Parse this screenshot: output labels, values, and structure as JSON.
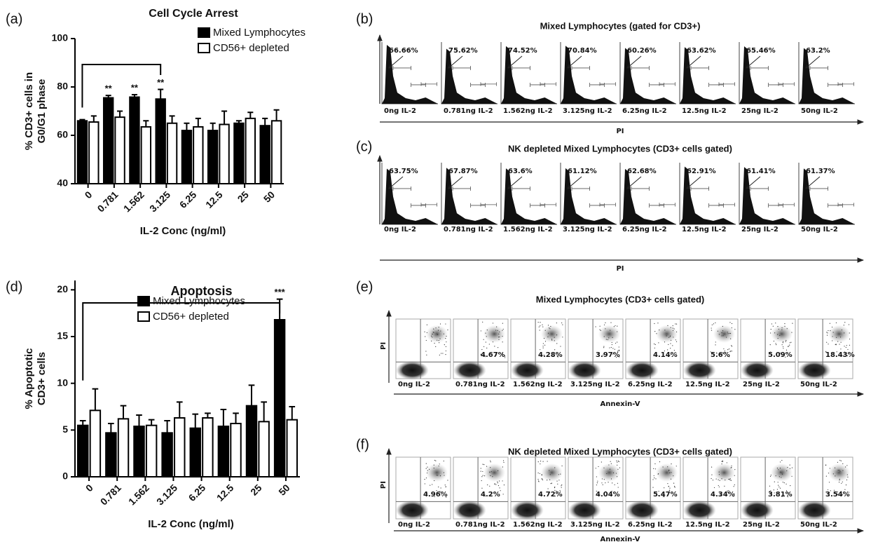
{
  "chart_data": [
    {
      "type": "bar",
      "panel_label": "(a)",
      "title": "Cell  Cycle Arrest",
      "y_label": [
        "% CD3+ cells in",
        "G0/G1 phase"
      ],
      "x_label": "IL-2 Conc  (ng/ml)",
      "categories": [
        "0",
        "0.781",
        "1.562",
        "3.125",
        "6.25",
        "12.5",
        "25",
        "50"
      ],
      "series": [
        {
          "name": "Mixed Lymphocytes",
          "color": "#000000",
          "values": [
            66,
            75.5,
            75.8,
            75,
            62,
            62,
            65,
            64
          ],
          "errors": [
            0.5,
            1,
            1,
            4,
            3,
            3,
            1,
            3
          ]
        },
        {
          "name": "CD56+ depleted",
          "color": "#ffffff",
          "values": [
            65.5,
            67.5,
            63.5,
            65,
            63.5,
            64.5,
            67,
            66
          ],
          "errors": [
            2.5,
            2.5,
            2.5,
            3,
            3.5,
            5.5,
            2.5,
            4.5
          ]
        }
      ],
      "annotations": [
        null,
        "**",
        "**",
        "**",
        null,
        null,
        null,
        null
      ],
      "ylim": [
        40,
        100
      ],
      "yticks": [
        40,
        60,
        80,
        100
      ],
      "legend": "upper right"
    },
    {
      "type": "bar",
      "panel_label": "(d)",
      "title": "Apoptosis",
      "y_label": [
        "% Apoptotic",
        "CD3+ cells"
      ],
      "x_label": "IL-2 Conc  (ng/ml)",
      "categories": [
        "0",
        "0.781",
        "1.562",
        "3.125",
        "6.25",
        "12.5",
        "25",
        "50"
      ],
      "series": [
        {
          "name": "Mixed Lymphocytes",
          "color": "#000000",
          "values": [
            5.5,
            4.7,
            5.4,
            4.7,
            5.2,
            5.4,
            7.6,
            16.8
          ],
          "errors": [
            0.5,
            1,
            1.2,
            1.3,
            1.5,
            1.8,
            2.2,
            2.2
          ]
        },
        {
          "name": "CD56+ depleted",
          "color": "#ffffff",
          "values": [
            7.1,
            6.2,
            5.5,
            6.3,
            6.3,
            5.7,
            5.9,
            6.1
          ],
          "errors": [
            2.3,
            1.4,
            0.6,
            1.7,
            0.5,
            1.1,
            2.1,
            1.4
          ]
        }
      ],
      "annotations": [
        null,
        null,
        null,
        null,
        null,
        null,
        null,
        "***"
      ],
      "ylim": [
        0,
        21
      ],
      "yticks": [
        0,
        5,
        10,
        15,
        20
      ],
      "legend": "upper center"
    }
  ],
  "flow_panels": [
    {
      "label": "(b)",
      "kind": "histogram",
      "title": "Mixed Lymphocytes (gated for CD3+)",
      "percentages": [
        "66.66%",
        "75.62%",
        "74.52%",
        "70.84%",
        "60.26%",
        "63.62%",
        "65.46%",
        "63.2%"
      ],
      "samples": [
        "0ng IL-2",
        "0.781ng IL-2",
        "1.562ng IL-2",
        "3.125ng IL-2",
        "6.25ng IL-2",
        "12.5ng IL-2",
        "25ng IL-2",
        "50ng IL-2"
      ],
      "x_label": "PI"
    },
    {
      "label": "(c)",
      "kind": "histogram",
      "title": "NK depleted Mixed Lymphocytes (CD3+ cells gated)",
      "percentages": [
        "63.75%",
        "67.87%",
        "63.6%",
        "61.12%",
        "62.68%",
        "62.91%",
        "61.41%",
        "61.37%"
      ],
      "samples": [
        "0ng IL-2",
        "0.781ng IL-2",
        "1.562ng IL-2",
        "3.125ng IL-2",
        "6.25ng IL-2",
        "12.5ng IL-2",
        "25ng IL-2",
        "50ng IL-2"
      ],
      "x_label": "PI"
    },
    {
      "label": "(e)",
      "kind": "scatter",
      "title": "Mixed Lymphocytes  (CD3+ cells gated)",
      "percentages": [
        null,
        "4.67%",
        "4.28%",
        "3.97%",
        "4.14%",
        "5.6%",
        "5.09%",
        "18.43%"
      ],
      "samples": [
        "0ng IL-2",
        "0.781ng IL-2",
        "1.562ng IL-2",
        "3.125ng IL-2",
        "6.25ng IL-2",
        "12.5ng IL-2",
        "25ng IL-2",
        "50ng IL-2"
      ],
      "x_label": "Annexin-V",
      "y_label": "PI"
    },
    {
      "label": "(f)",
      "kind": "scatter",
      "title": "NK depleted Mixed Lymphocytes (CD3+ cells gated)",
      "percentages": [
        "4.96%",
        "4.2%",
        "4.72%",
        "4.04%",
        "5.47%",
        "4.34%",
        "3.81%",
        "3.54%"
      ],
      "samples": [
        "0ng IL-2",
        "0.781ng IL-2",
        "1.562ng IL-2",
        "3.125ng IL-2",
        "6.25ng IL-2",
        "12.5ng IL-2",
        "25ng IL-2",
        "50ng IL-2"
      ],
      "x_label": "Annexin-V",
      "y_label": "PI"
    }
  ]
}
